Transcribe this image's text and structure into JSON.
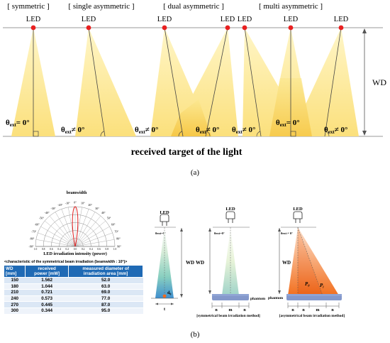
{
  "panel_a": {
    "headers": [
      "[ symmetric ]",
      "[ single asymmetric ]",
      "[ dual asymmetric ]",
      "[ multi asymmetric ]"
    ],
    "led_label": "LED",
    "wd_label": "WD",
    "target_label": "received target of the light",
    "theta_eq_main": "θ",
    "theta_eq_sub": "ext",
    "theta_eq_rest": "= 0°",
    "theta_ne_main": "θ",
    "theta_ne_sub": "ext",
    "theta_ne_rest": "≠ 0°",
    "panel_label": "(a)",
    "colors": {
      "beam_light": "#fef3b4",
      "beam_mid": "#fbe27a",
      "beam_deep": "#f5c542",
      "led": "#e82020"
    }
  },
  "panel_b": {
    "polar_title": "beamwidth",
    "polar_caption": "LED irradiation intensity (power)",
    "angle_labels": [
      "-90°",
      "-80°",
      "-70°",
      "-60°",
      "-50°",
      "-40°",
      "-30°",
      "-20°",
      "-10°",
      "0°",
      "10°",
      "20°",
      "30°",
      "40°",
      "50°",
      "60°",
      "70°",
      "80°",
      "90°"
    ],
    "radial_labels": [
      "1.0",
      "0.8",
      "0.6",
      "0.4",
      "0.2",
      "0.0",
      "0.2",
      "0.4",
      "0.6",
      "0.8",
      "1.0"
    ],
    "table_caption": "<characteristic of the symmetrical beam irradiation (beamwidth : 10°)>",
    "table_headers": [
      [
        "WD",
        "[mm]"
      ],
      [
        "received",
        "power [mW]"
      ],
      [
        "measured diameter of",
        "irradiation area [mm]"
      ]
    ],
    "table_rows": [
      [
        "150",
        "1.562",
        "52.0"
      ],
      [
        "180",
        "1.044",
        "63.0"
      ],
      [
        "210",
        "0.721",
        "69.0"
      ],
      [
        "240",
        "0.573",
        "77.0"
      ],
      [
        "270",
        "0.445",
        "87.0"
      ],
      [
        "300",
        "0.344",
        "95.0"
      ]
    ],
    "led_label": "LED",
    "wd_label": "WD",
    "theta_eq_small": "θext=0°",
    "theta_ne_small": "θext ≠ 0°",
    "d0_label": "d",
    "d0_sub": "0",
    "t_label": "t",
    "phantom_label": "phantom",
    "n_label": "n",
    "m_label": "m",
    "p0_label": "P",
    "p0_sub": "0",
    "pl_label": "P",
    "pl_sub": "l",
    "sym_caption": "[symmetrical beam irradiation method]",
    "asym_caption": "[asymmetrical beam irradiation method]",
    "panel_label": "(b)",
    "colors": {
      "table_header": "#1f6ab5",
      "orange": "#f26a1b",
      "phantom": "#6f86c2"
    }
  }
}
